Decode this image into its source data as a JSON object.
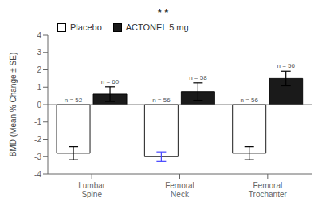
{
  "chart_data": {
    "type": "bar",
    "title": "* *",
    "categories": [
      "Lumbar\nSpine",
      "Femoral\nNeck",
      "Femoral\nTrochanter"
    ],
    "series": [
      {
        "name": "Placebo",
        "color": "#ffffff",
        "values": [
          -2.8,
          -3.0,
          -2.8
        ],
        "errors": [
          0.38,
          0.28,
          0.38
        ],
        "error_colors": [
          "#000000",
          "#4444ff",
          "#000000"
        ],
        "annotations": [
          "n = 52",
          "n = 56",
          "n = 56"
        ]
      },
      {
        "name": "ACTONEL 5 mg",
        "color": "#1a1a1a",
        "values": [
          0.6,
          0.75,
          1.5
        ],
        "errors": [
          0.42,
          0.5,
          0.42
        ],
        "error_colors": [
          "#000000",
          "#000000",
          "#000000"
        ],
        "annotations": [
          "n = 60",
          "n = 58",
          "n = 56"
        ]
      }
    ],
    "ylabel": "BMD (Mean % Change ± SE)",
    "ylim": [
      -4,
      4
    ],
    "yticks": [
      -4,
      -3,
      -2,
      -1,
      0,
      1,
      2,
      3,
      4
    ],
    "grid": false,
    "legend": "upper left"
  }
}
